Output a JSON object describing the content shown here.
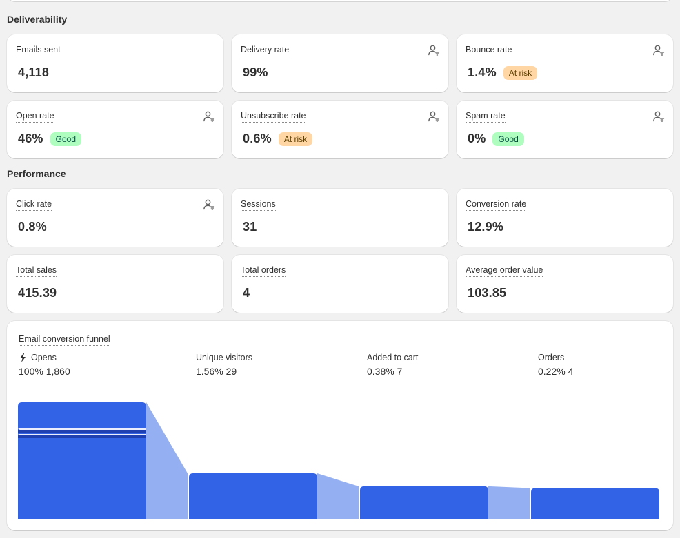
{
  "colors": {
    "bar": "#3262e6",
    "flow": "#94b0f3",
    "badge_risk": "#ffd6a4",
    "badge_good": "#affebf"
  },
  "sections": {
    "deliverability": "Deliverability",
    "performance": "Performance"
  },
  "deliverability": [
    {
      "label": "Emails sent",
      "value": "4,118",
      "badge": null,
      "icon": null
    },
    {
      "label": "Delivery rate",
      "value": "99%",
      "badge": null,
      "icon": "person-filter-icon"
    },
    {
      "label": "Bounce rate",
      "value": "1.4%",
      "badge": "At risk",
      "badge_type": "risk",
      "icon": "person-filter-icon"
    },
    {
      "label": "Open rate",
      "value": "46%",
      "badge": "Good",
      "badge_type": "good",
      "icon": "person-filter-icon"
    },
    {
      "label": "Unsubscribe rate",
      "value": "0.6%",
      "badge": "At risk",
      "badge_type": "risk",
      "icon": "person-filter-icon"
    },
    {
      "label": "Spam rate",
      "value": "0%",
      "badge": "Good",
      "badge_type": "good",
      "icon": "person-filter-icon"
    }
  ],
  "performance": [
    {
      "label": "Click rate",
      "value": "0.8%",
      "badge": null,
      "icon": "person-filter-icon"
    },
    {
      "label": "Sessions",
      "value": "31",
      "badge": null,
      "icon": null
    },
    {
      "label": "Conversion rate",
      "value": "12.9%",
      "badge": null,
      "icon": null
    },
    {
      "label": "Total sales",
      "value": "415.39",
      "badge": null,
      "icon": null
    },
    {
      "label": "Total orders",
      "value": "4",
      "badge": null,
      "icon": null
    },
    {
      "label": "Average order value",
      "value": "103.85",
      "badge": null,
      "icon": null
    }
  ],
  "funnel": {
    "title": "Email conversion funnel",
    "stages": [
      {
        "name": "Opens",
        "stats": "100% 1,860",
        "icon": "bolt-icon",
        "percent": 100
      },
      {
        "name": "Unique visitors",
        "stats": "1.56% 29",
        "icon": null,
        "percent": 1.56
      },
      {
        "name": "Added to cart",
        "stats": "0.38% 7",
        "icon": null,
        "percent": 0.38
      },
      {
        "name": "Orders",
        "stats": "0.22% 4",
        "icon": null,
        "percent": 0.22
      }
    ]
  }
}
